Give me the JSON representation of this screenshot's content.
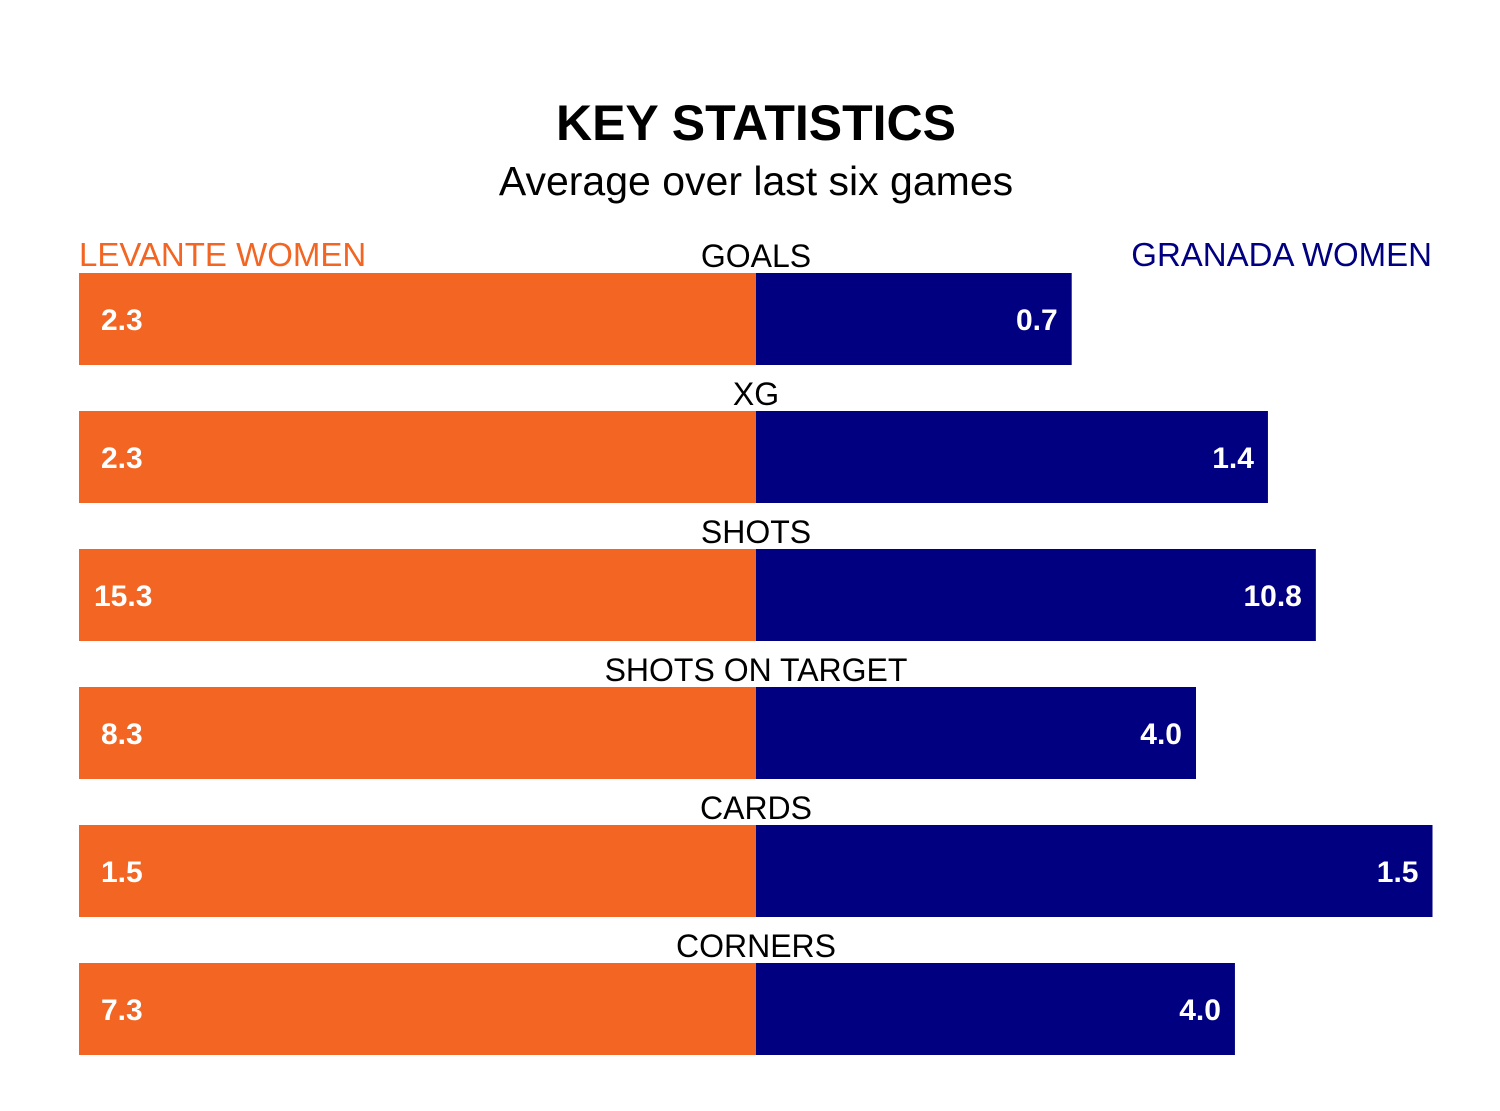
{
  "chart_data": {
    "type": "bar",
    "title": "KEY STATISTICS",
    "subtitle": "Average over last six games",
    "categories": [
      "GOALS",
      "XG",
      "SHOTS",
      "SHOTS ON TARGET",
      "CARDS",
      "CORNERS"
    ],
    "series": [
      {
        "name": "LEVANTE WOMEN",
        "color": "#F26522",
        "values": [
          2.3,
          2.3,
          15.3,
          8.3,
          1.5,
          7.3
        ],
        "labels": [
          "2.3",
          "2.3",
          "15.3",
          "8.3",
          "1.5",
          "7.3"
        ]
      },
      {
        "name": "GRANADA WOMEN",
        "color": "#000080",
        "values": [
          0.7,
          1.4,
          10.8,
          4.0,
          1.5,
          4.0
        ],
        "labels": [
          "0.7",
          "1.4",
          "10.8",
          "4.0",
          "1.5",
          "4.0"
        ]
      }
    ],
    "layout": "diverging-percentage-of-total",
    "legend": "top-left-and-top-right",
    "grid": false
  }
}
